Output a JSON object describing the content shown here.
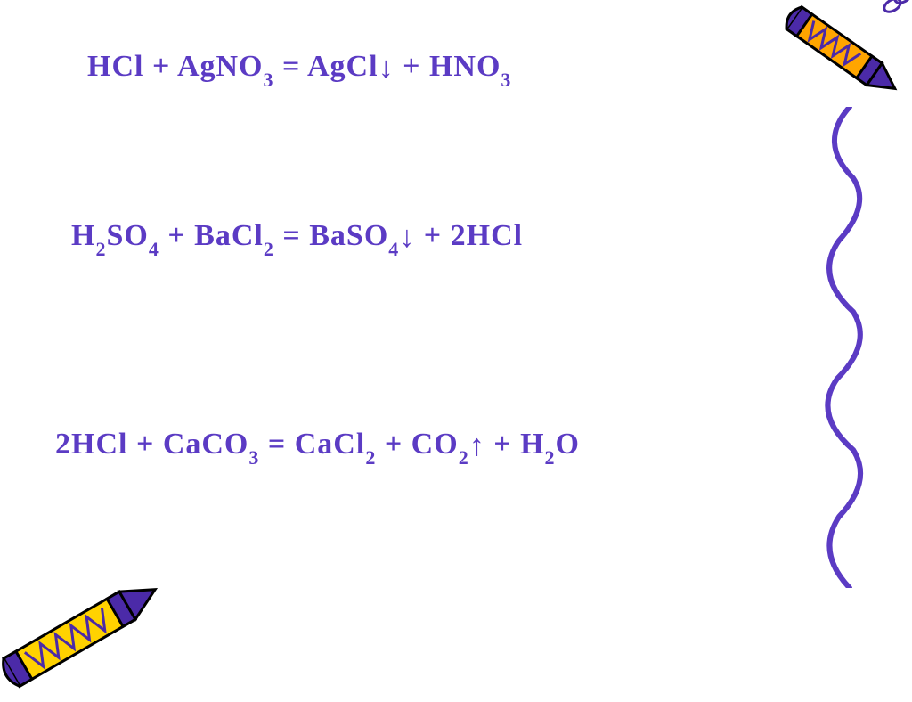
{
  "text_color": "#5b3bc4",
  "background_color": "#ffffff",
  "equations": {
    "eq1": {
      "left_html": "HCl + AgNO<sub>3</sub>",
      "right_html": "AgCl<span class='arrow-down'>↓</span>",
      "tail_html": "HNO<sub>3</sub>",
      "joiner_inner": "+",
      "equals": "="
    },
    "eq2": {
      "left_html": "H<sub>2</sub>SO<sub>4</sub> + BaCl<sub>2</sub>",
      "right_html": "BaSO<sub>4</sub><span class='arrow-down'>↓</span>",
      "tail_html": "2HCl",
      "joiner_inner": "+",
      "equals": "="
    },
    "eq3": {
      "left_html": "2HCl + CaCO<sub>3</sub>",
      "right_html": "CaCl<sub>2</sub> + CO<sub>2</sub><span class='arrow-up'>↑</span>",
      "tail_html": "H<sub>2</sub>O",
      "joiner_inner": "+",
      "equals": "="
    }
  },
  "squiggle": {
    "stroke": "#5b3bc4",
    "stroke_width": 5
  },
  "crayon_tr": {
    "body_fill": "#ffa500",
    "tip_fill": "#4b2aa8",
    "accent": "#4b2aa8",
    "outline": "#000000",
    "chain_color": "#4b2aa8"
  },
  "crayon_bl": {
    "body_fill": "#ffd200",
    "tip_fill": "#4b2aa8",
    "accent": "#4b2aa8",
    "outline": "#000000"
  }
}
